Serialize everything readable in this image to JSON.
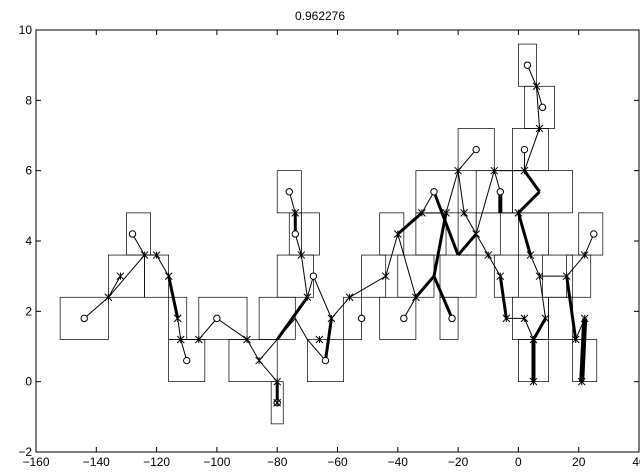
{
  "chart_data": {
    "type": "scatter",
    "title": "0.962276",
    "xlabel": "",
    "ylabel": "",
    "xlim": [
      -160,
      40
    ],
    "ylim": [
      -2,
      10
    ],
    "xticks": [
      -160,
      -140,
      -120,
      -100,
      -80,
      -60,
      -40,
      -20,
      0,
      20,
      40
    ],
    "yticks": [
      -2,
      0,
      2,
      4,
      6,
      8,
      10
    ],
    "xtick_labels": [
      "−160",
      "−140",
      "−120",
      "−100",
      "−80",
      "−60",
      "−40",
      "−20",
      "0",
      "20",
      "40"
    ],
    "ytick_labels": [
      "−2",
      "0",
      "2",
      "4",
      "6",
      "8",
      "10"
    ],
    "grid": false,
    "leaves": [
      [
        -144,
        1.8
      ],
      [
        -128,
        4.2
      ],
      [
        -110,
        0.6
      ],
      [
        -100,
        1.8
      ],
      [
        -80,
        -0.6
      ],
      [
        -76,
        5.4
      ],
      [
        -74,
        4.2
      ],
      [
        -68,
        3.0
      ],
      [
        -64,
        0.6
      ],
      [
        -52,
        1.8
      ],
      [
        -38,
        1.8
      ],
      [
        -28,
        5.4
      ],
      [
        -22,
        1.8
      ],
      [
        -14,
        6.6
      ],
      [
        -6,
        5.4
      ],
      [
        2,
        6.6
      ],
      [
        3,
        9.0
      ],
      [
        8,
        7.8
      ],
      [
        25,
        4.2
      ]
    ],
    "internal_nodes": [
      [
        -136,
        2.4
      ],
      [
        -132,
        3.0
      ],
      [
        -124,
        3.6
      ],
      [
        -120,
        3.6
      ],
      [
        -116,
        3.0
      ],
      [
        -113,
        1.8
      ],
      [
        -112,
        1.2
      ],
      [
        -106,
        1.2
      ],
      [
        -90,
        1.2
      ],
      [
        -86,
        0.6
      ],
      [
        -80,
        0.0
      ],
      [
        -80,
        -0.6
      ],
      [
        -74,
        4.8
      ],
      [
        -72,
        3.6
      ],
      [
        -70,
        2.4
      ],
      [
        -66,
        1.2
      ],
      [
        -62,
        1.8
      ],
      [
        -56,
        2.4
      ],
      [
        -44,
        3.0
      ],
      [
        -40,
        4.2
      ],
      [
        -34,
        2.4
      ],
      [
        -32,
        4.8
      ],
      [
        -24,
        4.8
      ],
      [
        -20,
        6.0
      ],
      [
        -18,
        4.8
      ],
      [
        -14,
        4.2
      ],
      [
        -10,
        3.6
      ],
      [
        -8,
        6.0
      ],
      [
        -6,
        3.0
      ],
      [
        -4,
        1.8
      ],
      [
        0,
        4.8
      ],
      [
        2,
        1.8
      ],
      [
        2,
        6.0
      ],
      [
        4,
        3.6
      ],
      [
        5,
        1.2
      ],
      [
        5,
        0.0
      ],
      [
        6,
        8.4
      ],
      [
        7,
        7.2
      ],
      [
        7,
        3.0
      ],
      [
        9,
        1.8
      ],
      [
        16,
        3.0
      ],
      [
        19,
        1.2
      ],
      [
        21,
        0.0
      ],
      [
        22,
        1.8
      ],
      [
        22,
        3.6
      ]
    ],
    "edges": [
      [
        -144,
        1.8,
        -136,
        2.4,
        1
      ],
      [
        -136,
        2.4,
        -132,
        3.0,
        1
      ],
      [
        -136,
        2.4,
        -124,
        3.6,
        1
      ],
      [
        -124,
        3.6,
        -128,
        4.2,
        1
      ],
      [
        -124,
        3.6,
        -120,
        3.6,
        1
      ],
      [
        -120,
        3.6,
        -116,
        3.0,
        1
      ],
      [
        -116,
        3.0,
        -113,
        1.8,
        3
      ],
      [
        -113,
        1.8,
        -112,
        1.2,
        1
      ],
      [
        -112,
        1.2,
        -110,
        0.6,
        1
      ],
      [
        -112,
        1.2,
        -106,
        1.2,
        1
      ],
      [
        -106,
        1.2,
        -100,
        1.8,
        1
      ],
      [
        -100,
        1.8,
        -90,
        1.2,
        1
      ],
      [
        -90,
        1.2,
        -86,
        0.6,
        1
      ],
      [
        -86,
        0.6,
        -80,
        0.0,
        1
      ],
      [
        -80,
        0.0,
        -80,
        -0.6,
        3
      ],
      [
        -86,
        0.6,
        -80,
        1.2,
        1
      ],
      [
        -80,
        1.2,
        -74,
        1.8,
        1
      ],
      [
        -80,
        1.2,
        -70,
        2.4,
        3
      ],
      [
        -76,
        5.4,
        -74,
        4.8,
        1
      ],
      [
        -74,
        4.8,
        -74,
        4.2,
        3
      ],
      [
        -74,
        4.2,
        -72,
        3.6,
        1
      ],
      [
        -72,
        3.6,
        -70,
        2.4,
        1
      ],
      [
        -74,
        1.8,
        -70,
        1.2,
        1
      ],
      [
        -70,
        1.2,
        -64,
        0.6,
        1
      ],
      [
        -70,
        2.4,
        -68,
        3.0,
        1
      ],
      [
        -68,
        3.0,
        -62,
        1.8,
        1
      ],
      [
        -64,
        0.6,
        -62,
        1.8,
        3
      ],
      [
        -62,
        1.8,
        -56,
        2.4,
        1
      ],
      [
        -56,
        2.4,
        -44,
        3.0,
        1
      ],
      [
        -44,
        3.0,
        -40,
        4.2,
        1
      ],
      [
        -40,
        4.2,
        -34,
        2.4,
        1
      ],
      [
        -34,
        2.4,
        -38,
        1.8,
        1
      ],
      [
        -40,
        4.2,
        -32,
        4.8,
        3
      ],
      [
        -32,
        4.8,
        -28,
        5.4,
        1
      ],
      [
        -32,
        4.8,
        -24,
        4.8,
        1
      ],
      [
        -24,
        4.8,
        -20,
        6.0,
        1
      ],
      [
        -20,
        6.0,
        -14,
        6.6,
        1
      ],
      [
        -24,
        4.8,
        -28,
        3.0,
        3
      ],
      [
        -28,
        3.0,
        -22,
        1.8,
        3
      ],
      [
        -28,
        3.0,
        -34,
        2.4,
        3
      ],
      [
        -20,
        6.0,
        -18,
        4.8,
        1
      ],
      [
        -18,
        4.8,
        -14,
        4.2,
        1
      ],
      [
        -14,
        4.2,
        -10,
        3.6,
        1
      ],
      [
        -10,
        3.6,
        -6,
        3.0,
        1
      ],
      [
        -14,
        4.2,
        -20,
        3.6,
        3
      ],
      [
        -20,
        3.6,
        -28,
        5.4,
        3
      ],
      [
        -8,
        6.0,
        -6,
        5.4,
        1
      ],
      [
        -6,
        5.4,
        -6,
        4.8,
        4
      ],
      [
        -6,
        4.8,
        0,
        4.8,
        1
      ],
      [
        0,
        4.8,
        4,
        3.6,
        3
      ],
      [
        4,
        3.6,
        7,
        3.0,
        1
      ],
      [
        7,
        3.0,
        9,
        1.8,
        1
      ],
      [
        9,
        1.8,
        5,
        1.2,
        3
      ],
      [
        5,
        1.2,
        5,
        0.0,
        4
      ],
      [
        -6,
        3.0,
        -4,
        1.8,
        3
      ],
      [
        -4,
        1.8,
        2,
        1.8,
        1
      ],
      [
        2,
        1.8,
        5,
        1.2,
        1
      ],
      [
        2,
        6.0,
        2,
        6.6,
        1
      ],
      [
        2,
        6.0,
        7,
        5.4,
        3
      ],
      [
        7,
        5.4,
        0,
        4.8,
        3
      ],
      [
        3,
        9.0,
        6,
        8.4,
        1
      ],
      [
        6,
        8.4,
        8,
        7.8,
        1
      ],
      [
        6,
        8.4,
        7,
        7.2,
        1
      ],
      [
        7,
        7.2,
        2,
        6.0,
        1
      ],
      [
        7,
        3.0,
        16,
        3.0,
        1
      ],
      [
        16,
        3.0,
        19,
        1.2,
        3
      ],
      [
        16,
        3.0,
        22,
        3.6,
        1
      ],
      [
        22,
        3.6,
        25,
        4.2,
        1
      ],
      [
        19,
        1.2,
        22,
        1.8,
        1
      ],
      [
        22,
        1.8,
        21,
        0.0,
        5
      ],
      [
        -8,
        6.0,
        2,
        6.0,
        1
      ],
      [
        -14,
        4.2,
        -8,
        6.0,
        1
      ]
    ],
    "boxes": [
      [
        -152,
        1.2,
        -136,
        2.4
      ],
      [
        -136,
        2.4,
        -124,
        3.6
      ],
      [
        -130,
        3.6,
        -122,
        4.8
      ],
      [
        -124,
        2.4,
        -116,
        3.6
      ],
      [
        -116,
        1.2,
        -110,
        2.4
      ],
      [
        -116,
        0.0,
        -104,
        1.2
      ],
      [
        -106,
        1.2,
        -90,
        2.4
      ],
      [
        -96,
        0.0,
        -80,
        1.2
      ],
      [
        -82,
        -1.2,
        -78,
        0.0
      ],
      [
        -80,
        4.8,
        -72,
        6.0
      ],
      [
        -76,
        3.6,
        -72,
        4.8
      ],
      [
        -86,
        1.2,
        -74,
        2.4
      ],
      [
        -80,
        2.4,
        -68,
        3.6
      ],
      [
        -72,
        3.6,
        -66,
        4.8
      ],
      [
        -70,
        0.0,
        -58,
        1.2
      ],
      [
        -58,
        1.2,
        -52,
        2.4
      ],
      [
        -52,
        2.4,
        -44,
        3.6
      ],
      [
        -46,
        3.6,
        -38,
        4.8
      ],
      [
        -46,
        1.2,
        -34,
        2.4
      ],
      [
        -40,
        2.4,
        -28,
        3.6
      ],
      [
        -34,
        3.6,
        -24,
        4.8
      ],
      [
        -34,
        4.8,
        -20,
        6.0
      ],
      [
        -26,
        1.2,
        -20,
        2.4
      ],
      [
        -26,
        2.4,
        -14,
        3.6
      ],
      [
        -20,
        3.6,
        -14,
        4.8
      ],
      [
        -20,
        6.0,
        -8,
        7.2
      ],
      [
        -14,
        4.8,
        -2,
        6.0
      ],
      [
        -14,
        3.6,
        -6,
        4.8
      ],
      [
        -8,
        2.4,
        0,
        3.6
      ],
      [
        -2,
        1.2,
        10,
        2.4
      ],
      [
        0,
        3.6,
        10,
        4.8
      ],
      [
        -2,
        4.8,
        18,
        6.0
      ],
      [
        -2,
        6.0,
        10,
        7.2
      ],
      [
        0,
        8.4,
        6,
        9.6
      ],
      [
        2,
        7.2,
        12,
        8.4
      ],
      [
        0,
        0.0,
        10,
        1.2
      ],
      [
        10,
        1.2,
        18,
        2.4
      ],
      [
        18,
        0.0,
        26,
        1.2
      ],
      [
        20,
        3.6,
        28,
        4.8
      ],
      [
        16,
        2.4,
        24,
        3.6
      ],
      [
        8,
        2.4,
        18,
        3.6
      ]
    ]
  }
}
